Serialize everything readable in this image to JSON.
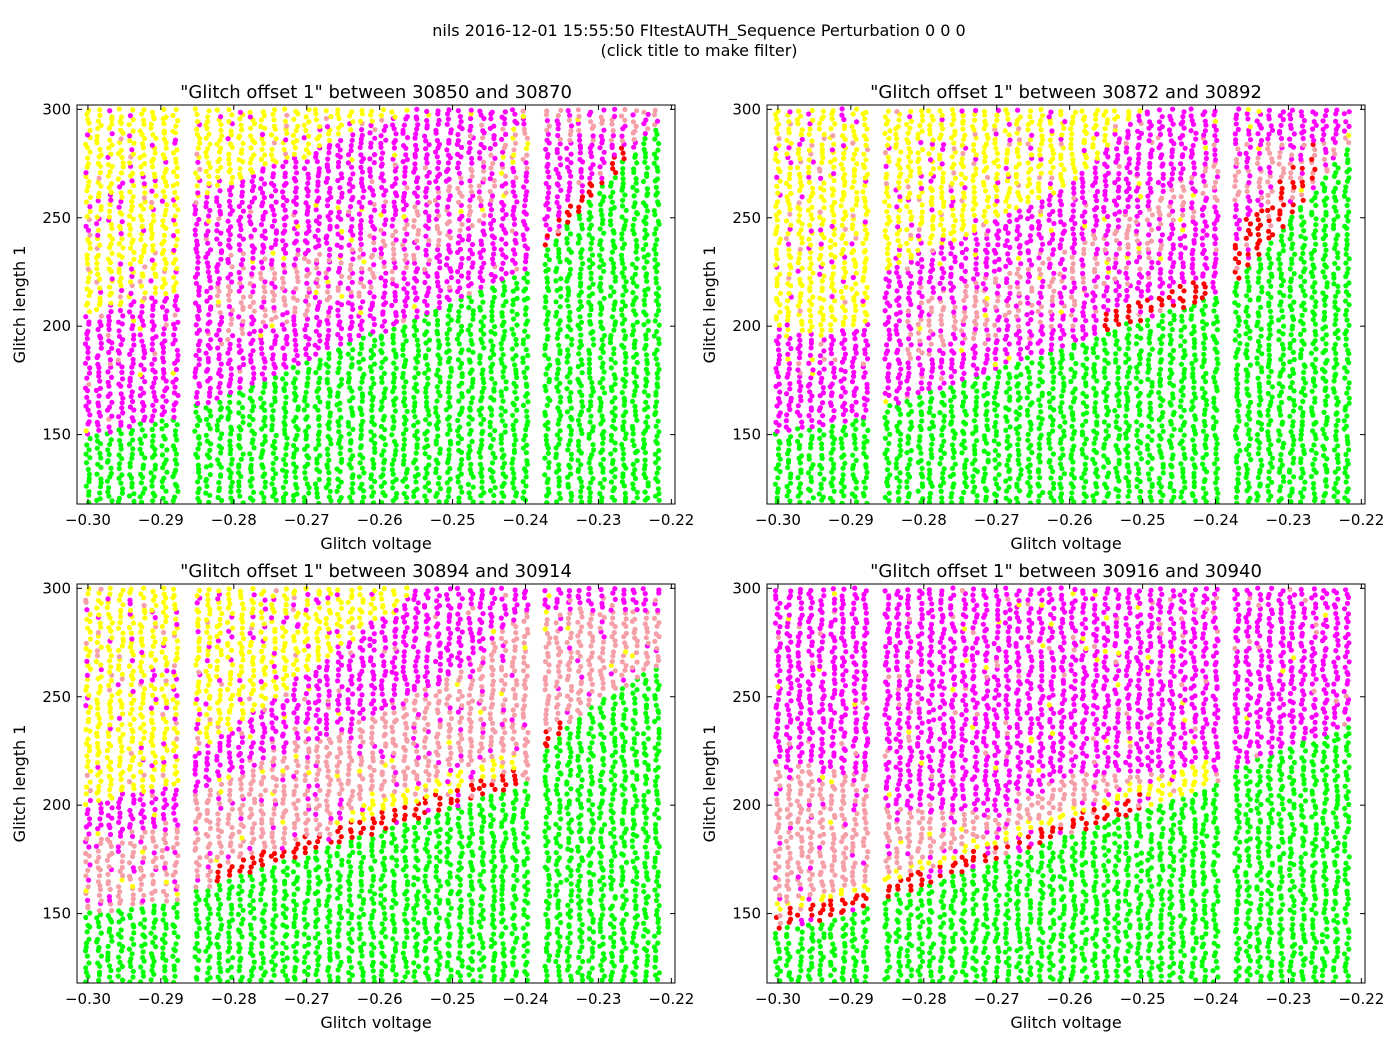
{
  "figure": {
    "title_line1": "nils 2016-12-01 15:55:50 FItestAUTH_Sequence Perturbation 0 0 0",
    "title_line2": "(click title to make filter)"
  },
  "colors": {
    "green": "#00ff00",
    "magenta": "#ff00ff",
    "yellow": "#ffff00",
    "pink": "#f5a0a8",
    "red": "#ff0000",
    "background": "#ffffff"
  },
  "chart_data": [
    {
      "type": "scatter",
      "title": "\"Glitch offset 1\" between 30850 and 30870",
      "xlabel": "Glitch voltage",
      "ylabel": "Glitch length 1",
      "xlim": [
        -0.3015,
        -0.2195
      ],
      "ylim": [
        118,
        302
      ],
      "xticks": [
        "−0.30",
        "−0.29",
        "−0.28",
        "−0.27",
        "−0.26",
        "−0.25",
        "−0.24",
        "−0.23",
        "−0.22"
      ],
      "yticks": [
        "150",
        "200",
        "250",
        "300"
      ],
      "grid": false,
      "x_columns_from": -0.3,
      "x_columns_to": -0.221,
      "x_column_step": 0.0015,
      "x_gaps": [
        [
          -0.2875,
          -0.2855
        ],
        [
          -0.2395,
          -0.2375
        ]
      ],
      "boundary_points": [
        [
          -0.3,
          149
        ],
        [
          -0.288,
          158
        ],
        [
          -0.285,
          163
        ],
        [
          -0.24,
          225
        ],
        [
          -0.236,
          240
        ],
        [
          -0.22,
          300
        ]
      ],
      "bands": [
        {
          "color": "red",
          "below": 8,
          "from_x": -0.237,
          "to_x": -0.226
        },
        {
          "color": "magenta",
          "upto": [
            [
              -0.3,
              205
            ],
            [
              -0.288,
              215
            ],
            [
              -0.285,
              258
            ],
            [
              -0.27,
              280
            ],
            [
              -0.256,
              300
            ],
            [
              -0.22,
              300
            ]
          ]
        },
        {
          "color": "yellow",
          "upto": [
            [
              -0.3,
              300
            ],
            [
              -0.22,
              300
            ]
          ]
        }
      ],
      "pink_region": [
        [
          -0.282,
          205
        ],
        [
          -0.26,
          230
        ],
        [
          -0.245,
          265
        ],
        [
          -0.238,
          300
        ]
      ]
    },
    {
      "type": "scatter",
      "title": "\"Glitch offset 1\" between 30872 and 30892",
      "xlabel": "Glitch voltage",
      "ylabel": "Glitch length 1",
      "xlim": [
        -0.3015,
        -0.2195
      ],
      "ylim": [
        118,
        302
      ],
      "xticks": [
        "−0.30",
        "−0.29",
        "−0.28",
        "−0.27",
        "−0.26",
        "−0.25",
        "−0.24",
        "−0.23",
        "−0.22"
      ],
      "yticks": [
        "150",
        "200",
        "250",
        "300"
      ],
      "grid": false,
      "x_columns_from": -0.3,
      "x_columns_to": -0.221,
      "x_column_step": 0.0015,
      "x_gaps": [
        [
          -0.2875,
          -0.2855
        ],
        [
          -0.2395,
          -0.2375
        ]
      ],
      "boundary_points": [
        [
          -0.3,
          150
        ],
        [
          -0.288,
          158
        ],
        [
          -0.285,
          163
        ],
        [
          -0.24,
          214
        ],
        [
          -0.236,
          225
        ],
        [
          -0.22,
          290
        ]
      ],
      "bands": [
        {
          "color": "red",
          "below": 10,
          "from_x": -0.256,
          "to_x": -0.24
        },
        {
          "color": "red",
          "below": 22,
          "from_x": -0.237,
          "to_x": -0.226
        },
        {
          "color": "magenta",
          "upto": [
            [
              -0.3,
              195
            ],
            [
              -0.288,
              200
            ],
            [
              -0.285,
              225
            ],
            [
              -0.26,
              265
            ],
            [
              -0.25,
              300
            ],
            [
              -0.22,
              300
            ]
          ]
        },
        {
          "color": "yellow",
          "upto": [
            [
              -0.3,
              300
            ],
            [
              -0.22,
              300
            ]
          ]
        }
      ],
      "pink_region": [
        [
          -0.282,
          198
        ],
        [
          -0.262,
          218
        ],
        [
          -0.248,
          245
        ],
        [
          -0.24,
          270
        ]
      ]
    },
    {
      "type": "scatter",
      "title": "\"Glitch offset 1\" between 30894 and 30914",
      "xlabel": "Glitch voltage",
      "ylabel": "Glitch length 1",
      "xlim": [
        -0.3015,
        -0.2195
      ],
      "ylim": [
        118,
        302
      ],
      "xticks": [
        "−0.30",
        "−0.29",
        "−0.28",
        "−0.27",
        "−0.26",
        "−0.25",
        "−0.24",
        "−0.23",
        "−0.22"
      ],
      "yticks": [
        "150",
        "200",
        "250",
        "300"
      ],
      "grid": false,
      "x_columns_from": -0.3,
      "x_columns_to": -0.221,
      "x_column_step": 0.0015,
      "x_gaps": [
        [
          -0.2875,
          -0.2855
        ],
        [
          -0.2395,
          -0.2375
        ]
      ],
      "boundary_points": [
        [
          -0.3,
          150
        ],
        [
          -0.288,
          156
        ],
        [
          -0.285,
          161
        ],
        [
          -0.24,
          210
        ],
        [
          -0.236,
          230
        ],
        [
          -0.23,
          248
        ],
        [
          -0.22,
          268
        ]
      ],
      "bands": [
        {
          "color": "red",
          "below": 8,
          "from_x": -0.283,
          "to_x": -0.24
        },
        {
          "color": "red",
          "below": 10,
          "from_x": -0.237,
          "to_x": -0.234
        },
        {
          "color": "yellow",
          "below": 16,
          "from_x": -0.265,
          "to_x": -0.24
        },
        {
          "color": "pink",
          "upto": [
            [
              -0.3,
              185
            ],
            [
              -0.288,
              190
            ],
            [
              -0.285,
              205
            ],
            [
              -0.265,
              235
            ],
            [
              -0.25,
              260
            ],
            [
              -0.24,
              290
            ]
          ]
        },
        {
          "color": "magenta",
          "upto": [
            [
              -0.3,
              200
            ],
            [
              -0.288,
              210
            ],
            [
              -0.285,
              225
            ],
            [
              -0.27,
              260
            ],
            [
              -0.255,
              300
            ],
            [
              -0.22,
              300
            ]
          ]
        },
        {
          "color": "yellow",
          "upto": [
            [
              -0.3,
              300
            ],
            [
              -0.22,
              300
            ]
          ]
        }
      ]
    },
    {
      "type": "scatter",
      "title": "\"Glitch offset 1\" between 30916 and 30940",
      "xlabel": "Glitch voltage",
      "ylabel": "Glitch length 1",
      "xlim": [
        -0.3015,
        -0.2195
      ],
      "ylim": [
        118,
        302
      ],
      "xticks": [
        "−0.30",
        "−0.29",
        "−0.28",
        "−0.27",
        "−0.26",
        "−0.25",
        "−0.24",
        "−0.23",
        "−0.22"
      ],
      "yticks": [
        "150",
        "200",
        "250",
        "300"
      ],
      "grid": false,
      "x_columns_from": -0.3,
      "x_columns_to": -0.221,
      "x_column_step": 0.0015,
      "x_gaps": [
        [
          -0.2875,
          -0.2855
        ],
        [
          -0.2395,
          -0.2375
        ]
      ],
      "boundary_points": [
        [
          -0.3,
          143
        ],
        [
          -0.288,
          152
        ],
        [
          -0.285,
          157
        ],
        [
          -0.24,
          210
        ],
        [
          -0.236,
          218
        ],
        [
          -0.22,
          240
        ]
      ],
      "bands": [
        {
          "color": "red",
          "below": 8,
          "from_x": -0.3,
          "to_x": -0.25
        },
        {
          "color": "yellow",
          "below": 12,
          "from_x": -0.3,
          "to_x": -0.24
        },
        {
          "color": "pink",
          "upto": [
            [
              -0.3,
              220
            ],
            [
              -0.288,
              215
            ],
            [
              -0.285,
              200
            ],
            [
              -0.27,
              195
            ],
            [
              -0.26,
              215
            ]
          ]
        },
        {
          "color": "magenta",
          "upto": [
            [
              -0.3,
              300
            ],
            [
              -0.22,
              300
            ]
          ]
        }
      ]
    }
  ]
}
